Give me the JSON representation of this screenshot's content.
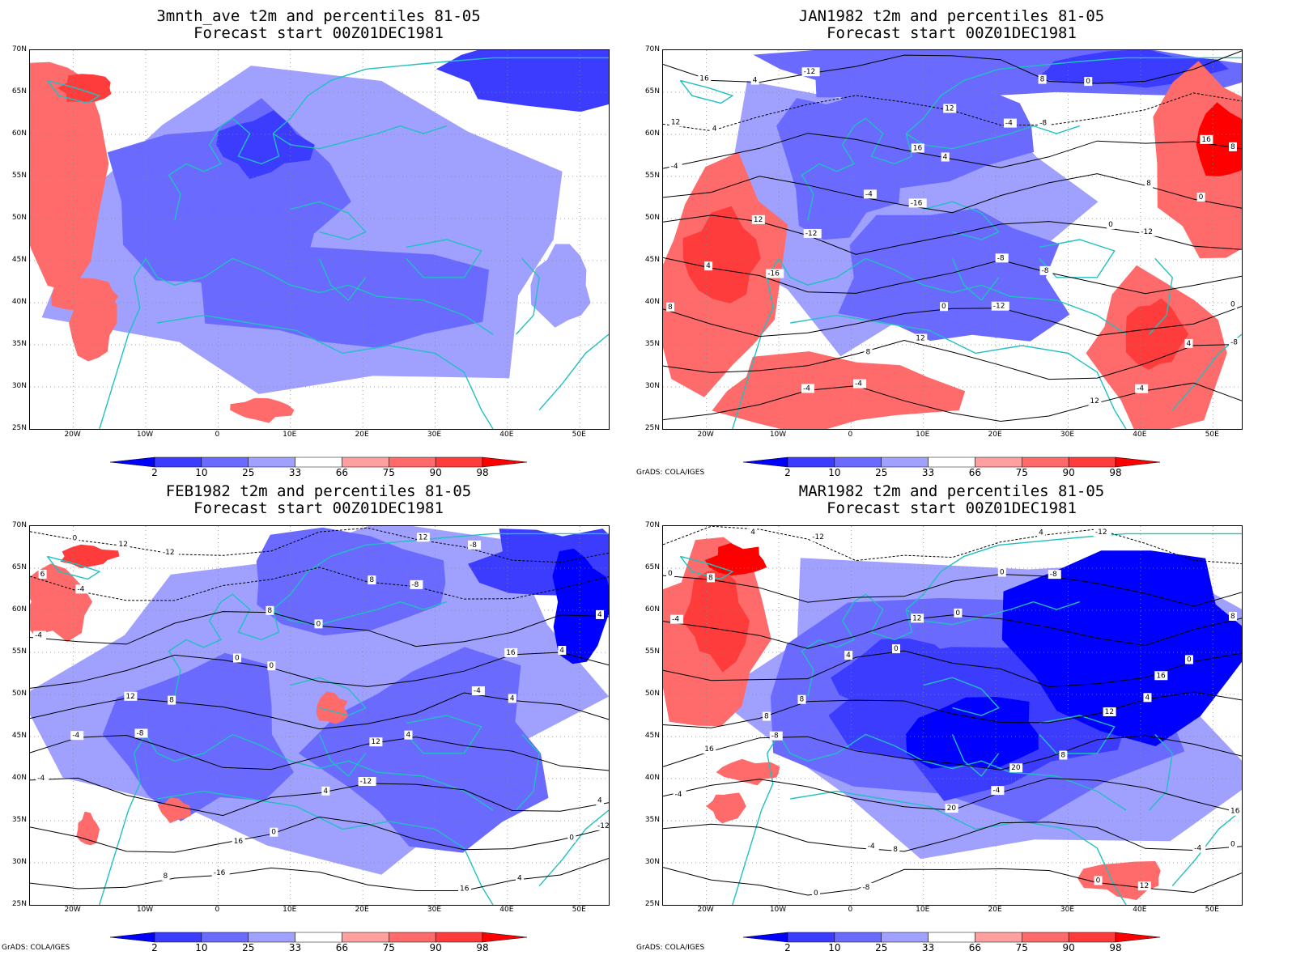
{
  "panels": [
    {
      "title1": "3mnth_ave t2m and percentiles 81-05",
      "title2": "Forecast start 00Z01DEC1981",
      "credit": "",
      "contour_labels": []
    },
    {
      "title1": "JAN1982 t2m and percentiles 81-05",
      "title2": "Forecast start 00Z01DEC1981",
      "credit": "GrADS: COLA/IGES",
      "contour_labels": [
        "-12",
        "-8",
        "-4",
        "-16",
        "-12",
        "-16",
        "-12",
        "-8",
        "-4",
        "0",
        "4",
        "4",
        "0",
        "-12",
        "-8",
        "8",
        "12",
        "-4",
        "4",
        "-4",
        "8",
        "-4",
        "0",
        "4",
        "0",
        "4",
        "-4",
        "8",
        "12",
        "16",
        "8",
        "12",
        "-8",
        "0",
        "8",
        "12",
        "16",
        "12",
        "16"
      ]
    },
    {
      "title1": "FEB1982 t2m and percentiles 81-05",
      "title2": "Forecast start 00Z01DEC1981",
      "credit": "GrADS: COLA/IGES",
      "contour_labels": [
        "-12",
        "-8",
        "-4",
        "0",
        "4",
        "-8",
        "-12",
        "-12",
        "-16",
        "-8",
        "-4",
        "0",
        "4",
        "8",
        "4",
        "-4",
        "0",
        "4",
        "12",
        "8",
        "4",
        "0",
        "-4",
        "-4",
        "4",
        "0",
        "8",
        "12",
        "6",
        "8",
        "16",
        "12",
        "12",
        "4",
        "16",
        "16",
        "0"
      ]
    },
    {
      "title1": "MAR1982 t2m and percentiles 81-05",
      "title2": "Forecast start 00Z01DEC1981",
      "credit": "GrADS: COLA/IGES",
      "contour_labels": [
        "-12",
        "-8",
        "-4",
        "0",
        "4",
        "-8",
        "-4",
        "0",
        "-8",
        "-12",
        "8",
        "0",
        "0",
        "8",
        "8",
        "-4",
        "8",
        "12",
        "4",
        "0",
        "8",
        "4",
        "12",
        "16",
        "20",
        "-4",
        "0",
        "4",
        "0",
        "12",
        "16",
        "8",
        "20",
        "16",
        "-4",
        "0"
      ]
    }
  ],
  "lat_labels": [
    "70N",
    "65N",
    "60N",
    "55N",
    "50N",
    "45N",
    "40N",
    "35N",
    "30N",
    "25N"
  ],
  "lon_labels": [
    "20W",
    "10W",
    "0",
    "10E",
    "20E",
    "30E",
    "40E",
    "50E"
  ],
  "colorbar": {
    "labels": [
      "2",
      "10",
      "25",
      "33",
      "66",
      "75",
      "90",
      "98"
    ],
    "colors": [
      "#0000ff",
      "#3c3cff",
      "#6a6aff",
      "#a0a0ff",
      "#ffffff",
      "#ffa0a0",
      "#ff6a6a",
      "#ff3c3c",
      "#ff0000"
    ]
  }
}
